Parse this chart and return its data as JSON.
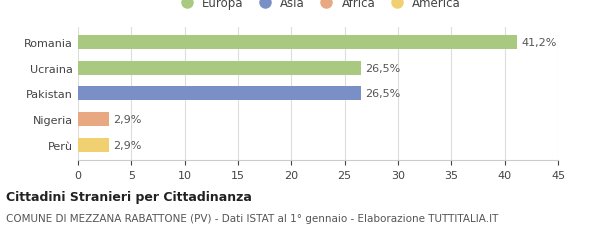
{
  "categories": [
    "Romania",
    "Ucraina",
    "Pakistan",
    "Nigeria",
    "Perù"
  ],
  "values": [
    41.2,
    26.5,
    26.5,
    2.9,
    2.9
  ],
  "labels": [
    "41,2%",
    "26,5%",
    "26,5%",
    "2,9%",
    "2,9%"
  ],
  "bar_colors": [
    "#a8c97f",
    "#a8c97f",
    "#7b8fc7",
    "#e8a882",
    "#f0d070"
  ],
  "legend_entries": [
    "Europa",
    "Asia",
    "Africa",
    "America"
  ],
  "legend_colors": [
    "#a8c97f",
    "#7b8fc7",
    "#e8a882",
    "#f0d070"
  ],
  "xlim": [
    0,
    45
  ],
  "xticks": [
    0,
    5,
    10,
    15,
    20,
    25,
    30,
    35,
    40,
    45
  ],
  "title_bold": "Cittadini Stranieri per Cittadinanza",
  "subtitle": "COMUNE DI MEZZANA RABATTONE (PV) - Dati ISTAT al 1° gennaio - Elaborazione TUTTITALIA.IT",
  "bg_color": "#ffffff",
  "bar_height": 0.55,
  "title_fontsize": 9,
  "subtitle_fontsize": 7.5,
  "label_fontsize": 8,
  "tick_fontsize": 8,
  "legend_fontsize": 8.5
}
